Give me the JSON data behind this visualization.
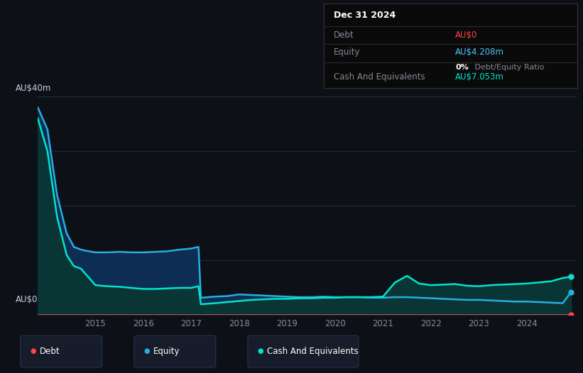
{
  "bg_color": "#0d1117",
  "plot_bg_color": "#0d1117",
  "grid_color": "#1e2d3d",
  "title_box": {
    "date": "Dec 31 2024",
    "debt_label": "Debt",
    "debt_value": "AU$0",
    "debt_color": "#ff4444",
    "equity_label": "Equity",
    "equity_value": "AU$4.208m",
    "equity_color": "#4dc3ff",
    "ratio_value": "0%",
    "ratio_text": " Debt/Equity Ratio",
    "ratio_color": "#ffffff",
    "cash_label": "Cash And Equivalents",
    "cash_value": "AU$7.053m",
    "cash_color": "#00e5cc"
  },
  "ylabel_top": "AU$40m",
  "ylabel_bottom": "AU$0",
  "x_ticks": [
    2015,
    2016,
    2017,
    2018,
    2019,
    2020,
    2021,
    2022,
    2023,
    2024
  ],
  "ylim": [
    0,
    42
  ],
  "debt_color": "#ff4444",
  "equity_color": "#29aee0",
  "equity_fill_color": "#0d2d52",
  "cash_color": "#00e5cc",
  "cash_fill_color": "#093535",
  "equity_data": {
    "x": [
      2013.8,
      2014.0,
      2014.2,
      2014.4,
      2014.55,
      2014.7,
      2014.8,
      2015.0,
      2015.25,
      2015.5,
      2015.75,
      2016.0,
      2016.25,
      2016.5,
      2016.75,
      2017.0,
      2017.1,
      2017.15,
      2017.2,
      2017.5,
      2017.75,
      2018.0,
      2018.25,
      2018.5,
      2018.75,
      2019.0,
      2019.25,
      2019.5,
      2019.75,
      2020.0,
      2020.25,
      2020.5,
      2020.75,
      2021.0,
      2021.25,
      2021.5,
      2021.75,
      2022.0,
      2022.25,
      2022.5,
      2022.75,
      2023.0,
      2023.25,
      2023.5,
      2023.75,
      2024.0,
      2024.25,
      2024.5,
      2024.75,
      2024.92
    ],
    "y": [
      38,
      34,
      22,
      15,
      12.5,
      12.0,
      11.8,
      11.5,
      11.5,
      11.6,
      11.5,
      11.5,
      11.6,
      11.7,
      12.0,
      12.2,
      12.4,
      12.5,
      3.2,
      3.4,
      3.5,
      3.8,
      3.7,
      3.6,
      3.5,
      3.4,
      3.3,
      3.3,
      3.4,
      3.3,
      3.3,
      3.3,
      3.2,
      3.2,
      3.3,
      3.3,
      3.2,
      3.1,
      3.0,
      2.9,
      2.8,
      2.8,
      2.7,
      2.6,
      2.5,
      2.5,
      2.4,
      2.3,
      2.2,
      4.208
    ]
  },
  "cash_data": {
    "x": [
      2013.8,
      2014.0,
      2014.2,
      2014.4,
      2014.55,
      2014.7,
      2014.8,
      2015.0,
      2015.25,
      2015.5,
      2015.75,
      2016.0,
      2016.25,
      2016.5,
      2016.75,
      2017.0,
      2017.1,
      2017.15,
      2017.2,
      2017.5,
      2017.75,
      2018.0,
      2018.25,
      2018.5,
      2018.75,
      2019.0,
      2019.25,
      2019.5,
      2019.75,
      2020.0,
      2020.25,
      2020.5,
      2020.75,
      2021.0,
      2021.25,
      2021.5,
      2021.75,
      2022.0,
      2022.25,
      2022.5,
      2022.75,
      2023.0,
      2023.25,
      2023.5,
      2023.75,
      2024.0,
      2024.25,
      2024.5,
      2024.75,
      2024.92
    ],
    "y": [
      36,
      30,
      18,
      11,
      9.0,
      8.5,
      7.5,
      5.5,
      5.3,
      5.2,
      5.0,
      4.8,
      4.8,
      4.9,
      5.0,
      5.0,
      5.2,
      5.3,
      2.0,
      2.2,
      2.4,
      2.6,
      2.8,
      2.9,
      3.0,
      3.0,
      3.1,
      3.1,
      3.2,
      3.2,
      3.3,
      3.3,
      3.3,
      3.4,
      6.0,
      7.2,
      5.8,
      5.5,
      5.6,
      5.7,
      5.4,
      5.3,
      5.5,
      5.6,
      5.7,
      5.8,
      6.0,
      6.2,
      6.8,
      7.053
    ]
  },
  "debt_data": {
    "x": [
      2013.8,
      2024.92
    ],
    "y": [
      0.0,
      0.0
    ]
  }
}
